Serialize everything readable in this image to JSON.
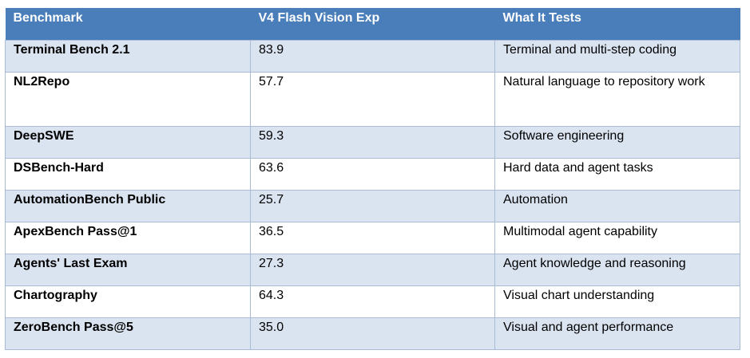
{
  "table": {
    "headers": [
      "Benchmark",
      "V4 Flash Vision Exp",
      "What It Tests"
    ],
    "rows": [
      {
        "benchmark": "Terminal Bench 2.1",
        "score": "83.9",
        "tests": "Terminal and multi-step coding"
      },
      {
        "benchmark": "NL2Repo",
        "score": "57.7",
        "tests": "Natural language to repository work"
      },
      {
        "benchmark": "DeepSWE",
        "score": "59.3",
        "tests": "Software engineering"
      },
      {
        "benchmark": "DSBench-Hard",
        "score": "63.6",
        "tests": "Hard data and agent tasks"
      },
      {
        "benchmark": "AutomationBench Public",
        "score": "25.7",
        "tests": "Automation"
      },
      {
        "benchmark": "ApexBench Pass@1",
        "score": "36.5",
        "tests": "Multimodal agent capability"
      },
      {
        "benchmark": "Agents' Last Exam",
        "score": "27.3",
        "tests": "Agent knowledge and reasoning"
      },
      {
        "benchmark": "Chartography",
        "score": "64.3",
        "tests": "Visual chart understanding"
      },
      {
        "benchmark": "ZeroBench Pass@5",
        "score": "35.0",
        "tests": "Visual and agent performance"
      }
    ]
  },
  "colors": {
    "header_bg": "#4a7ebb",
    "band_bg": "#dae3f0",
    "border": "#a8bcd6"
  }
}
